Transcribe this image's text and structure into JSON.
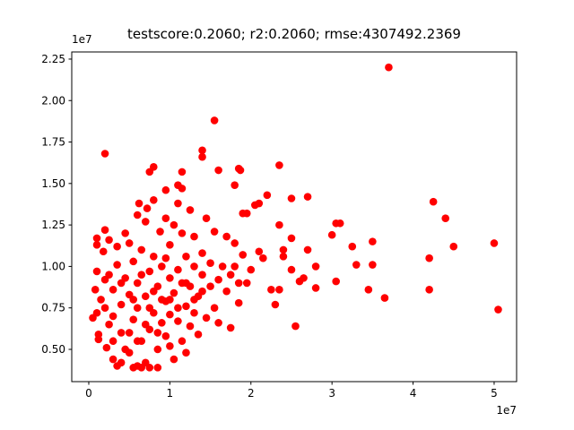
{
  "chart_data": {
    "type": "scatter",
    "title": "testscore:0.2060; r2:0.2060; rmse:4307492.2369",
    "x_offset_label": "1e7",
    "y_offset_label": "1e7",
    "color": "#ff0000",
    "xlim": [
      -0.21,
      5.277
    ],
    "ylim": [
      0.3055,
      2.293
    ],
    "xticks": [
      0,
      1,
      2,
      3,
      4,
      5
    ],
    "yticks": [
      {
        "value": 0.5,
        "label": "0.50"
      },
      {
        "value": 0.75,
        "label": "0.75"
      },
      {
        "value": 1.0,
        "label": "1.00"
      },
      {
        "value": 1.25,
        "label": "1.25"
      },
      {
        "value": 1.5,
        "label": "1.50"
      },
      {
        "value": 1.75,
        "label": "1.75"
      },
      {
        "value": 2.0,
        "label": "2.00"
      },
      {
        "value": 2.25,
        "label": "2.25"
      }
    ],
    "x": [
      3.7,
      1.55,
      0.2,
      1.4,
      1.4,
      0.8,
      0.75,
      1.15,
      1.6,
      1.85,
      1.87,
      2.35,
      1.1,
      1.15,
      1.8,
      0.95,
      2.2,
      2.5,
      2.7,
      4.25,
      4.4,
      4.5,
      5.0,
      5.05,
      4.2,
      4.2,
      3.65,
      3.5,
      3.5,
      3.45,
      3.25,
      3.3,
      3.05,
      3.1,
      3.0,
      3.05,
      2.8,
      2.7,
      2.8,
      2.65,
      2.6,
      2.5,
      2.5,
      2.55,
      2.35,
      2.4,
      2.4,
      2.35,
      2.3,
      2.25,
      2.15,
      2.1,
      2.05,
      2.1,
      2.0,
      1.95,
      1.9,
      1.8,
      1.75,
      1.85,
      1.85,
      0.05,
      0.1,
      0.08,
      0.1,
      0.1,
      0.1,
      0.15,
      0.12,
      0.12,
      0.18,
      0.2,
      0.2,
      0.22,
      0.25,
      0.25,
      0.3,
      0.3,
      0.35,
      0.35,
      0.35,
      0.4,
      0.4,
      0.4,
      0.45,
      0.45,
      0.5,
      0.5,
      0.5,
      0.55,
      0.55,
      0.55,
      0.6,
      0.6,
      0.6,
      0.6,
      0.62,
      0.65,
      0.65,
      0.65,
      0.7,
      0.7,
      0.7,
      0.72,
      0.75,
      0.75,
      0.75,
      0.8,
      0.8,
      0.8,
      0.85,
      0.85,
      0.85,
      0.88,
      0.9,
      0.9,
      0.95,
      0.95,
      0.95,
      1,
      1,
      1,
      1,
      1.05,
      1.05,
      1.05,
      1.1,
      1.1,
      1.1,
      1.15,
      1.15,
      1.15,
      1.2,
      1.2,
      1.2,
      1.25,
      1.25,
      1.25,
      1.3,
      1.3,
      1.3,
      1.35,
      1.35,
      1.4,
      1.4,
      1.45,
      1.45,
      1.5,
      1.5,
      1.55,
      1.55,
      1.6,
      1.6,
      1.65,
      1.7,
      1.7,
      1.75,
      1.8,
      1.9,
      1.95,
      1.3,
      0.9,
      0.7,
      0.5,
      0.3,
      0.45,
      0.6,
      0.8,
      1,
      1.2,
      0.95,
      0.4,
      0.25,
      0.65,
      0.85,
      1.1,
      0.55,
      0.75,
      1.4,
      0.3,
      0.2
    ],
    "values": [
      2.2,
      1.88,
      1.68,
      1.7,
      1.66,
      1.6,
      1.57,
      1.57,
      1.58,
      1.59,
      1.58,
      1.61,
      1.49,
      1.47,
      1.49,
      1.46,
      1.43,
      1.41,
      1.42,
      1.39,
      1.29,
      1.12,
      1.14,
      0.74,
      1.05,
      0.86,
      0.81,
      1.15,
      1.01,
      0.86,
      1.12,
      1.01,
      1.26,
      1.26,
      1.19,
      0.91,
      1.0,
      1.1,
      0.87,
      0.93,
      0.91,
      0.98,
      1.17,
      0.64,
      1.25,
      1.1,
      1.06,
      0.86,
      0.77,
      0.86,
      1.05,
      1.09,
      1.37,
      1.38,
      0.98,
      1.32,
      1.32,
      1.14,
      0.63,
      0.78,
      0.9,
      0.69,
      0.72,
      0.86,
      1.17,
      1.13,
      0.97,
      0.8,
      0.59,
      0.56,
      1.09,
      1.22,
      0.92,
      0.51,
      0.65,
      1.16,
      0.44,
      0.86,
      0.4,
      1.01,
      1.12,
      0.77,
      0.42,
      0.6,
      1.2,
      0.93,
      0.48,
      0.83,
      1.14,
      0.39,
      0.68,
      1.03,
      0.4,
      0.75,
      0.9,
      1.31,
      1.38,
      0.55,
      1.1,
      0.39,
      0.42,
      0.82,
      1.27,
      1.35,
      0.62,
      0.97,
      0.39,
      0.72,
      1.06,
      1.4,
      0.5,
      0.88,
      0.39,
      1.21,
      0.66,
      1,
      0.79,
      1.29,
      0.58,
      0.93,
      0.71,
      1.13,
      0.52,
      0.84,
      1.25,
      0.44,
      0.98,
      0.67,
      1.38,
      0.9,
      0.55,
      1.2,
      0.76,
      1.06,
      0.48,
      1.34,
      0.88,
      0.64,
      1,
      0.72,
      1.18,
      0.82,
      0.59,
      1.08,
      0.95,
      0.69,
      1.29,
      0.88,
      1.02,
      0.75,
      1.21,
      0.92,
      0.66,
      1,
      0.85,
      1.18,
      0.95,
      1,
      1.07,
      0.9,
      0.8,
      0.8,
      0.65,
      0.6,
      0.7,
      0.5,
      0.55,
      0.85,
      0.8,
      0.9,
      1.05,
      0.9,
      0.95,
      0.95,
      0.6,
      0.75,
      0.8,
      0.75,
      0.85,
      0.55,
      0.75
    ]
  }
}
